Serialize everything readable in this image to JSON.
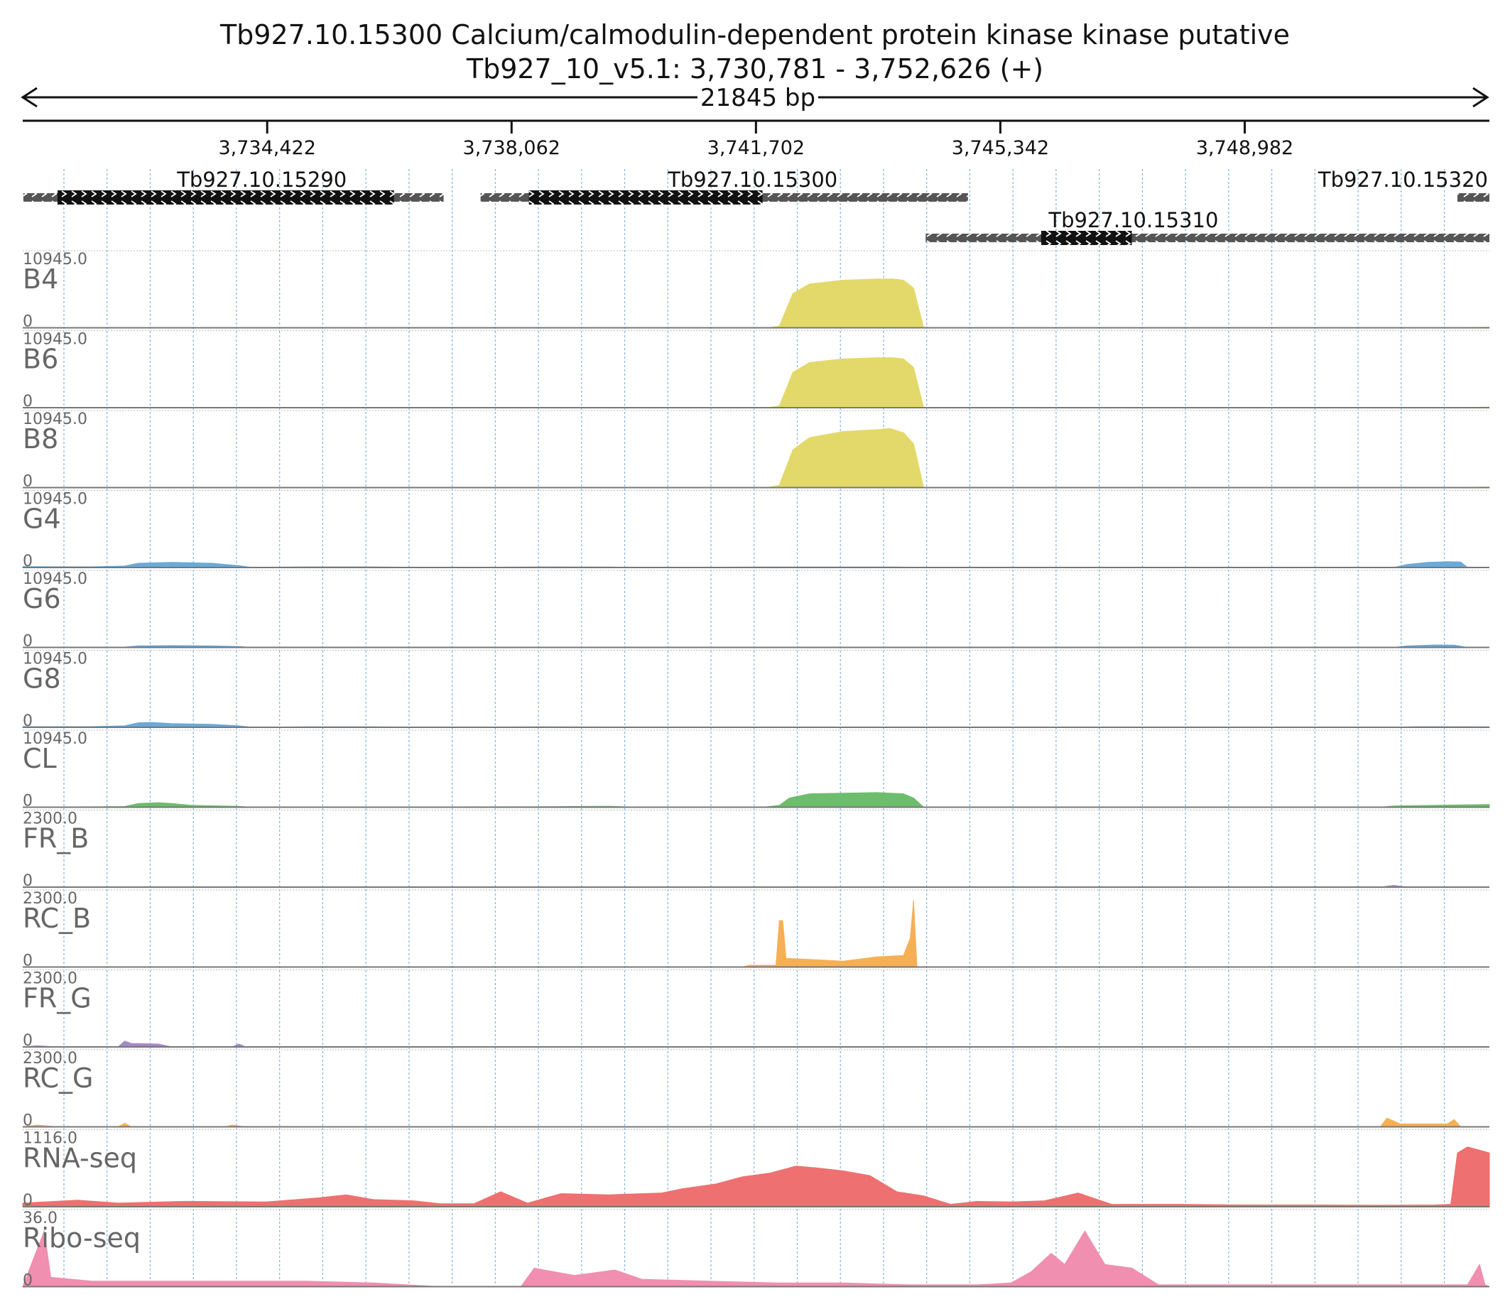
{
  "header": {
    "title": "Tb927.10.15300  Calcium/calmodulin-dependent protein kinase kinase  putative",
    "subtitle": "Tb927_10_v5.1: 3,730,781 - 3,752,626 (+)",
    "span_label": "21845 bp"
  },
  "chart_data": {
    "type": "area",
    "region": {
      "chrom": "Tb927_10_v5.1",
      "start": 3730781,
      "end": 3752626,
      "strand": "+"
    },
    "ticks": [
      {
        "pos": 3734422,
        "label": "3,734,422"
      },
      {
        "pos": 3738062,
        "label": "3,738,062"
      },
      {
        "pos": 3741702,
        "label": "3,741,702"
      },
      {
        "pos": 3745342,
        "label": "3,745,342"
      },
      {
        "pos": 3748982,
        "label": "3,748,982"
      }
    ],
    "genes": [
      {
        "name": "Tb927.10.15290",
        "start": 3730790,
        "end": 3737050,
        "cds_start": 3731300,
        "cds_end": 3736310,
        "row": 0
      },
      {
        "name": "Tb927.10.15300",
        "start": 3737600,
        "end": 3744860,
        "cds_start": 3738320,
        "cds_end": 3741800,
        "row": 0
      },
      {
        "name": "Tb927.10.15320",
        "start": 3752150,
        "end": 3752626,
        "cds_start": null,
        "cds_end": null,
        "row": 0
      },
      {
        "name": "Tb927.10.15310",
        "start": 3744230,
        "end": 3752626,
        "cds_start": 3745950,
        "cds_end": 3747300,
        "row": 1
      }
    ],
    "tracks": [
      {
        "name": "B4",
        "max": "10945.0",
        "min": "0",
        "color": "#e3d96a",
        "profile": [
          [
            3730781,
            0
          ],
          [
            3741400,
            0
          ],
          [
            3741600,
            30
          ],
          [
            3741900,
            40
          ],
          [
            3742050,
            300
          ],
          [
            3742250,
            5600
          ],
          [
            3742500,
            7200
          ],
          [
            3743000,
            7800
          ],
          [
            3743500,
            8000
          ],
          [
            3743750,
            8000
          ],
          [
            3743900,
            7800
          ],
          [
            3744050,
            6500
          ],
          [
            3744200,
            0
          ],
          [
            3751900,
            0
          ],
          [
            3752626,
            120
          ]
        ]
      },
      {
        "name": "B6",
        "max": "10945.0",
        "min": "0",
        "color": "#e3d96a",
        "profile": [
          [
            3730781,
            0
          ],
          [
            3741400,
            0
          ],
          [
            3741600,
            30
          ],
          [
            3741900,
            40
          ],
          [
            3742050,
            300
          ],
          [
            3742250,
            5800
          ],
          [
            3742500,
            7400
          ],
          [
            3743000,
            8000
          ],
          [
            3743500,
            8200
          ],
          [
            3743750,
            8200
          ],
          [
            3743900,
            8000
          ],
          [
            3744050,
            6600
          ],
          [
            3744200,
            0
          ],
          [
            3751900,
            0
          ],
          [
            3752626,
            120
          ]
        ]
      },
      {
        "name": "B8",
        "max": "10945.0",
        "min": "0",
        "color": "#e3d96a",
        "profile": [
          [
            3730781,
            0
          ],
          [
            3741400,
            0
          ],
          [
            3741600,
            40
          ],
          [
            3741900,
            60
          ],
          [
            3742050,
            400
          ],
          [
            3742250,
            6200
          ],
          [
            3742500,
            8200
          ],
          [
            3743000,
            9200
          ],
          [
            3743500,
            9500
          ],
          [
            3743700,
            9700
          ],
          [
            3743900,
            9000
          ],
          [
            3744050,
            7200
          ],
          [
            3744200,
            0
          ],
          [
            3751900,
            0
          ],
          [
            3752626,
            120
          ]
        ]
      },
      {
        "name": "G4",
        "max": "10945.0",
        "min": "0",
        "color": "#6aaad8",
        "profile": [
          [
            3730781,
            150
          ],
          [
            3731800,
            120
          ],
          [
            3732300,
            250
          ],
          [
            3732500,
            700
          ],
          [
            3733000,
            850
          ],
          [
            3733600,
            700
          ],
          [
            3734000,
            300
          ],
          [
            3734200,
            0
          ],
          [
            3734900,
            100
          ],
          [
            3736000,
            100
          ],
          [
            3737000,
            0
          ],
          [
            3738500,
            100
          ],
          [
            3739500,
            90
          ],
          [
            3740000,
            0
          ],
          [
            3741800,
            80
          ],
          [
            3743800,
            80
          ],
          [
            3744200,
            0
          ],
          [
            3751200,
            0
          ],
          [
            3751400,
            500
          ],
          [
            3751700,
            850
          ],
          [
            3752000,
            950
          ],
          [
            3752200,
            900
          ],
          [
            3752300,
            0
          ],
          [
            3752626,
            0
          ]
        ]
      },
      {
        "name": "G6",
        "max": "10945.0",
        "min": "0",
        "color": "#6aaad8",
        "profile": [
          [
            3730781,
            0
          ],
          [
            3732300,
            60
          ],
          [
            3732500,
            250
          ],
          [
            3733000,
            300
          ],
          [
            3733600,
            250
          ],
          [
            3734000,
            150
          ],
          [
            3734200,
            0
          ],
          [
            3751200,
            0
          ],
          [
            3751400,
            250
          ],
          [
            3751800,
            400
          ],
          [
            3752100,
            380
          ],
          [
            3752300,
            0
          ],
          [
            3752626,
            0
          ]
        ]
      },
      {
        "name": "G8",
        "max": "10945.0",
        "min": "0",
        "color": "#6aaad8",
        "profile": [
          [
            3730781,
            120
          ],
          [
            3731800,
            120
          ],
          [
            3732300,
            250
          ],
          [
            3732500,
            750
          ],
          [
            3732700,
            800
          ],
          [
            3733000,
            600
          ],
          [
            3733600,
            500
          ],
          [
            3734000,
            250
          ],
          [
            3734200,
            0
          ],
          [
            3735000,
            80
          ],
          [
            3736000,
            80
          ],
          [
            3737000,
            0
          ],
          [
            3738500,
            80
          ],
          [
            3739500,
            60
          ],
          [
            3740000,
            0
          ],
          [
            3751200,
            0
          ],
          [
            3751500,
            100
          ],
          [
            3752626,
            80
          ]
        ]
      },
      {
        "name": "CL",
        "max": "10945.0",
        "min": "0",
        "color": "#6dbd6d",
        "profile": [
          [
            3730781,
            0
          ],
          [
            3732300,
            120
          ],
          [
            3732500,
            600
          ],
          [
            3732800,
            750
          ],
          [
            3733000,
            600
          ],
          [
            3733300,
            300
          ],
          [
            3734000,
            150
          ],
          [
            3734200,
            0
          ],
          [
            3738500,
            80
          ],
          [
            3739500,
            160
          ],
          [
            3740000,
            0
          ],
          [
            3741800,
            0
          ],
          [
            3742050,
            300
          ],
          [
            3742200,
            1500
          ],
          [
            3742500,
            2200
          ],
          [
            3743000,
            2300
          ],
          [
            3743500,
            2400
          ],
          [
            3743900,
            2200
          ],
          [
            3744050,
            1500
          ],
          [
            3744200,
            0
          ],
          [
            3751000,
            0
          ],
          [
            3751200,
            200
          ],
          [
            3752626,
            450
          ]
        ]
      },
      {
        "name": "FR_B",
        "max": "2300.0",
        "min": "0",
        "color": "#a58ac5",
        "profile": [
          [
            3730781,
            0
          ],
          [
            3751000,
            0
          ],
          [
            3751200,
            60
          ],
          [
            3751400,
            0
          ],
          [
            3752626,
            0
          ]
        ]
      },
      {
        "name": "RC_B",
        "max": "2300.0",
        "min": "0",
        "color": "#f5b055",
        "profile": [
          [
            3730781,
            0
          ],
          [
            3741500,
            0
          ],
          [
            3741600,
            60
          ],
          [
            3742000,
            60
          ],
          [
            3742050,
            1600
          ],
          [
            3742100,
            1600
          ],
          [
            3742150,
            300
          ],
          [
            3742600,
            250
          ],
          [
            3743000,
            200
          ],
          [
            3743500,
            350
          ],
          [
            3743900,
            400
          ],
          [
            3744000,
            1000
          ],
          [
            3744050,
            2300
          ],
          [
            3744100,
            0
          ],
          [
            3752626,
            0
          ]
        ]
      },
      {
        "name": "FR_G",
        "max": "2300.0",
        "min": "0",
        "color": "#a58ac5",
        "profile": [
          [
            3730781,
            0
          ],
          [
            3731000,
            40
          ],
          [
            3731300,
            0
          ],
          [
            3732200,
            0
          ],
          [
            3732300,
            200
          ],
          [
            3732400,
            120
          ],
          [
            3732800,
            100
          ],
          [
            3733000,
            0
          ],
          [
            3733900,
            0
          ],
          [
            3734000,
            100
          ],
          [
            3734100,
            0
          ],
          [
            3752626,
            0
          ]
        ]
      },
      {
        "name": "RC_G",
        "max": "2300.0",
        "min": "0",
        "color": "#f5b055",
        "profile": [
          [
            3730781,
            0
          ],
          [
            3731000,
            60
          ],
          [
            3731300,
            0
          ],
          [
            3732200,
            0
          ],
          [
            3732300,
            120
          ],
          [
            3732400,
            0
          ],
          [
            3733800,
            0
          ],
          [
            3733900,
            60
          ],
          [
            3734100,
            0
          ],
          [
            3751000,
            0
          ],
          [
            3751100,
            300
          ],
          [
            3751300,
            100
          ],
          [
            3752000,
            100
          ],
          [
            3752100,
            250
          ],
          [
            3752200,
            0
          ],
          [
            3752626,
            0
          ]
        ]
      },
      {
        "name": "RNA-seq",
        "max": "1116.0",
        "min": "0",
        "color": "#ee7070",
        "profile": [
          [
            3730781,
            60
          ],
          [
            3731600,
            110
          ],
          [
            3732200,
            60
          ],
          [
            3733200,
            90
          ],
          [
            3734400,
            80
          ],
          [
            3735200,
            150
          ],
          [
            3735600,
            200
          ],
          [
            3736000,
            120
          ],
          [
            3736600,
            100
          ],
          [
            3737000,
            50
          ],
          [
            3737500,
            50
          ],
          [
            3737900,
            250
          ],
          [
            3738300,
            60
          ],
          [
            3738800,
            220
          ],
          [
            3739500,
            200
          ],
          [
            3740300,
            230
          ],
          [
            3740600,
            300
          ],
          [
            3741100,
            380
          ],
          [
            3741500,
            500
          ],
          [
            3741900,
            560
          ],
          [
            3742300,
            680
          ],
          [
            3742600,
            650
          ],
          [
            3743000,
            600
          ],
          [
            3743400,
            520
          ],
          [
            3743800,
            250
          ],
          [
            3744200,
            180
          ],
          [
            3744600,
            40
          ],
          [
            3745000,
            90
          ],
          [
            3745500,
            80
          ],
          [
            3746000,
            100
          ],
          [
            3746500,
            230
          ],
          [
            3747000,
            40
          ],
          [
            3748000,
            40
          ],
          [
            3749000,
            30
          ],
          [
            3750000,
            30
          ],
          [
            3751000,
            25
          ],
          [
            3751800,
            30
          ],
          [
            3752050,
            40
          ],
          [
            3752150,
            900
          ],
          [
            3752300,
            1000
          ],
          [
            3752500,
            940
          ],
          [
            3752626,
            900
          ]
        ]
      },
      {
        "name": "Ribo-seq",
        "max": "36.0",
        "min": "0",
        "color": "#f08fb0",
        "profile": [
          [
            3730781,
            0
          ],
          [
            3731100,
            30
          ],
          [
            3731200,
            5
          ],
          [
            3731800,
            3
          ],
          [
            3733000,
            3
          ],
          [
            3734000,
            3
          ],
          [
            3735000,
            3
          ],
          [
            3736000,
            2
          ],
          [
            3737000,
            0
          ],
          [
            3738200,
            0
          ],
          [
            3738400,
            10
          ],
          [
            3739000,
            6
          ],
          [
            3739600,
            9
          ],
          [
            3740000,
            4
          ],
          [
            3741000,
            3
          ],
          [
            3742000,
            2
          ],
          [
            3743000,
            2
          ],
          [
            3744000,
            1
          ],
          [
            3745000,
            1
          ],
          [
            3745500,
            2
          ],
          [
            3745800,
            8
          ],
          [
            3746100,
            18
          ],
          [
            3746300,
            12
          ],
          [
            3746600,
            30
          ],
          [
            3746900,
            12
          ],
          [
            3747300,
            10
          ],
          [
            3747700,
            1
          ],
          [
            3749000,
            1
          ],
          [
            3751000,
            1
          ],
          [
            3752300,
            1
          ],
          [
            3752480,
            12
          ],
          [
            3752560,
            1
          ],
          [
            3752626,
            0
          ]
        ]
      }
    ]
  }
}
